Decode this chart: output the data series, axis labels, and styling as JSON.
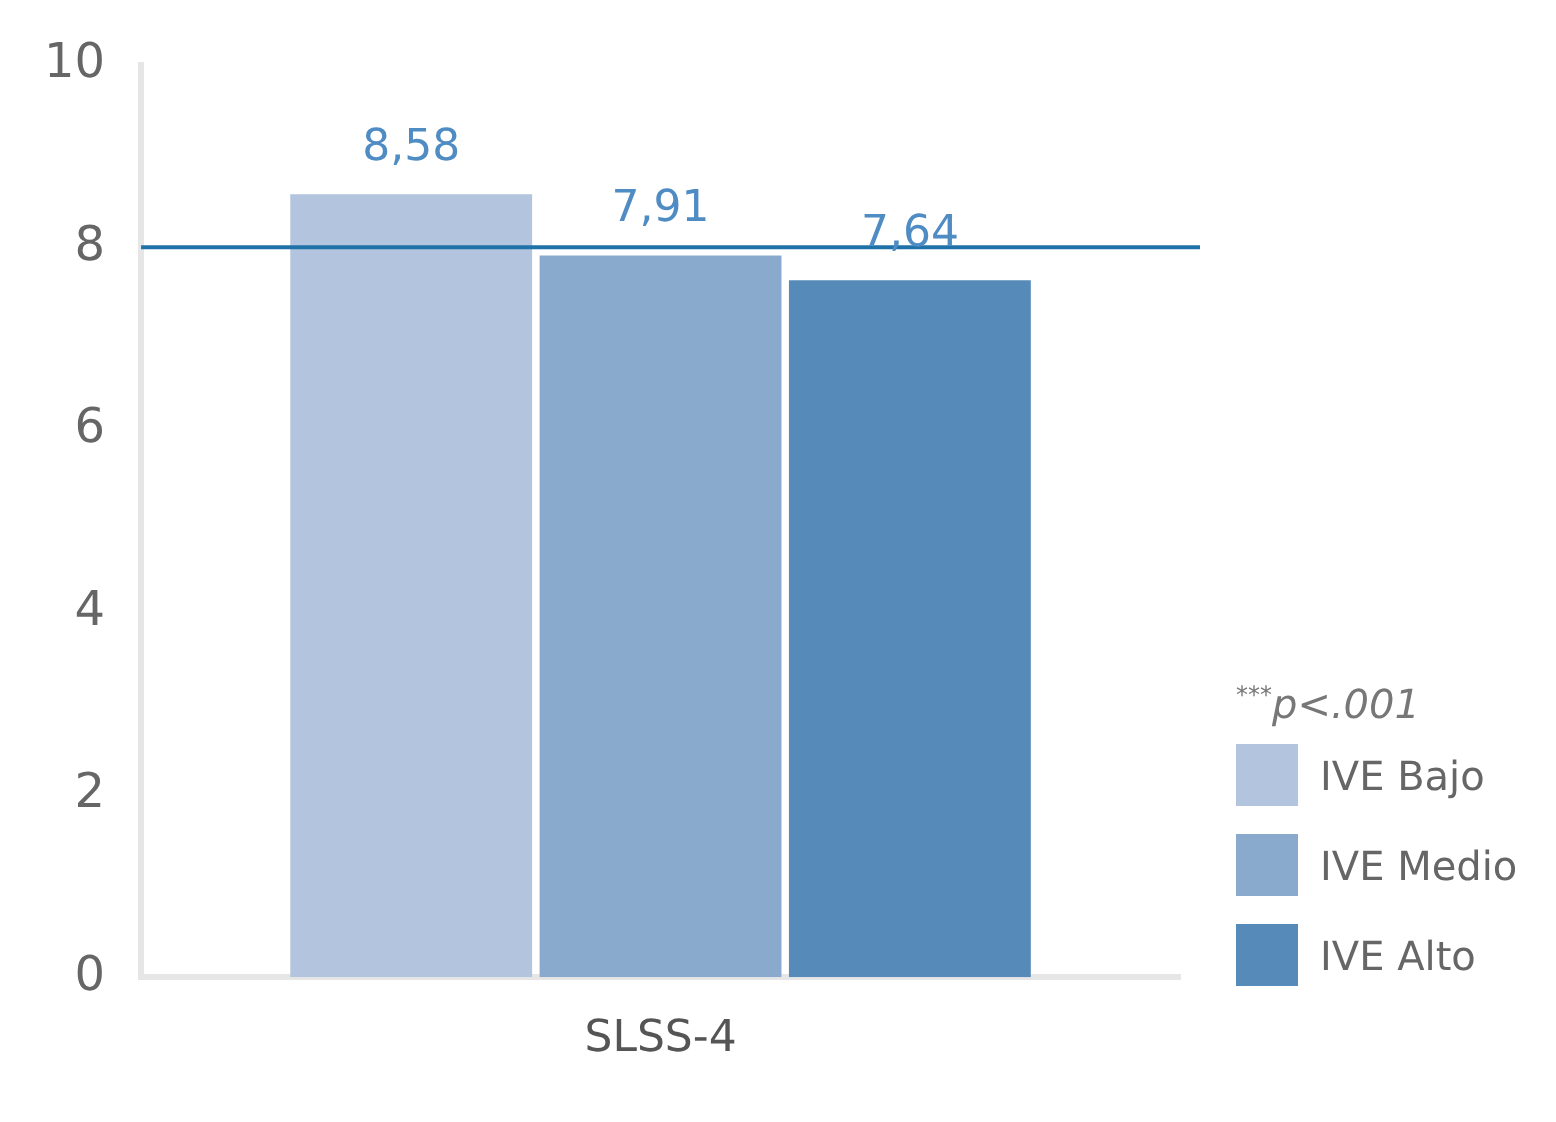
{
  "chart_data": {
    "type": "bar",
    "categories": [
      "SLSS-4"
    ],
    "series": [
      {
        "name": "IVE Bajo",
        "color": "#b3c4de",
        "values": [
          8.58
        ],
        "value_labels": [
          "8,58"
        ]
      },
      {
        "name": "IVE Medio",
        "color": "#89aacd",
        "values": [
          7.91
        ],
        "value_labels": [
          "7,91"
        ]
      },
      {
        "name": "IVE Alto",
        "color": "#568bb9",
        "values": [
          7.64
        ],
        "value_labels": [
          "7,64"
        ]
      }
    ],
    "ylim": [
      0,
      10
    ],
    "yticks": [
      0,
      2,
      4,
      6,
      8,
      10
    ],
    "grid": false,
    "legend": "bottom right",
    "legend_title": "$^{***}$p<.001",
    "ref_lines": [
      {
        "axis": "y",
        "value": 8,
        "color": "#1f72a8"
      }
    ]
  }
}
